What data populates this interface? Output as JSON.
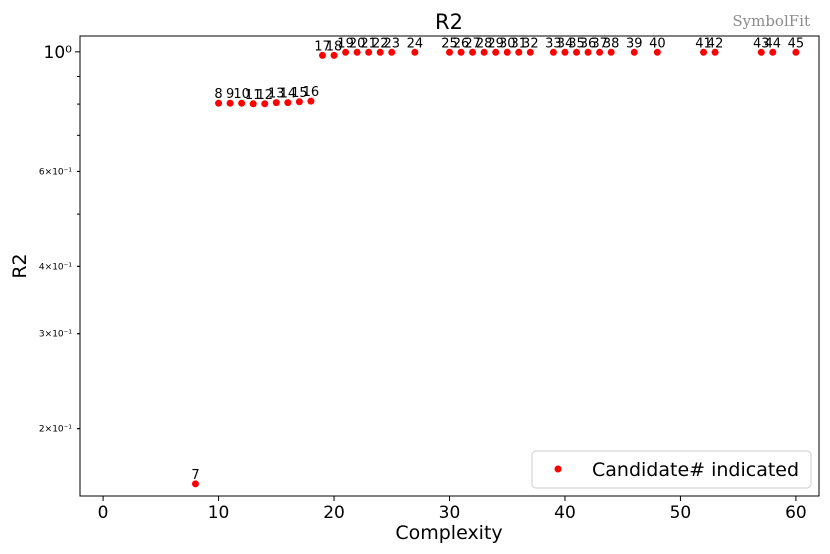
{
  "watermark": "SymbolFit",
  "chart_data": {
    "type": "scatter",
    "title": "R2",
    "xlabel": "Complexity",
    "ylabel": "R2",
    "xscale": "linear",
    "yscale": "log",
    "xlim": [
      -2,
      62
    ],
    "ylim": [
      0.15,
      1.07
    ],
    "xticks": [
      0,
      10,
      20,
      30,
      40,
      50,
      60
    ],
    "yticks": [
      {
        "value": 1.0,
        "label": "10⁰",
        "major": true
      },
      {
        "value": 0.6,
        "label": "6×10⁻¹",
        "major": false
      },
      {
        "value": 0.4,
        "label": "4×10⁻¹",
        "major": false
      },
      {
        "value": 0.3,
        "label": "3×10⁻¹",
        "major": false
      },
      {
        "value": 0.2,
        "label": "2×10⁻¹",
        "major": false
      }
    ],
    "legend": {
      "position": "lower-right",
      "label": "Candidate# indicated"
    },
    "marker_color": "#ff0000",
    "points": [
      {
        "label": "7",
        "x": 8,
        "y": 0.158
      },
      {
        "label": "8",
        "x": 10,
        "y": 0.803
      },
      {
        "label": "9",
        "x": 11,
        "y": 0.803
      },
      {
        "label": "10",
        "x": 12,
        "y": 0.803
      },
      {
        "label": "11",
        "x": 13,
        "y": 0.801
      },
      {
        "label": "12",
        "x": 14,
        "y": 0.801
      },
      {
        "label": "13",
        "x": 15,
        "y": 0.805
      },
      {
        "label": "14",
        "x": 16,
        "y": 0.805
      },
      {
        "label": "15",
        "x": 17,
        "y": 0.808
      },
      {
        "label": "16",
        "x": 18,
        "y": 0.81
      },
      {
        "label": "17",
        "x": 19,
        "y": 0.985
      },
      {
        "label": "18",
        "x": 20,
        "y": 0.985
      },
      {
        "label": "19",
        "x": 21,
        "y": 0.998
      },
      {
        "label": "20",
        "x": 22,
        "y": 0.998
      },
      {
        "label": "21",
        "x": 23,
        "y": 0.998
      },
      {
        "label": "22",
        "x": 24,
        "y": 0.998
      },
      {
        "label": "23",
        "x": 25,
        "y": 0.998
      },
      {
        "label": "24",
        "x": 27,
        "y": 0.998
      },
      {
        "label": "25",
        "x": 30,
        "y": 0.998
      },
      {
        "label": "26",
        "x": 31,
        "y": 0.998
      },
      {
        "label": "27",
        "x": 32,
        "y": 0.998
      },
      {
        "label": "28",
        "x": 33,
        "y": 0.998
      },
      {
        "label": "29",
        "x": 34,
        "y": 0.998
      },
      {
        "label": "30",
        "x": 35,
        "y": 0.998
      },
      {
        "label": "31",
        "x": 36,
        "y": 0.998
      },
      {
        "label": "32",
        "x": 37,
        "y": 0.998
      },
      {
        "label": "33",
        "x": 39,
        "y": 0.998
      },
      {
        "label": "34",
        "x": 40,
        "y": 0.998
      },
      {
        "label": "35",
        "x": 41,
        "y": 0.998
      },
      {
        "label": "36",
        "x": 42,
        "y": 0.998
      },
      {
        "label": "37",
        "x": 43,
        "y": 0.998
      },
      {
        "label": "38",
        "x": 44,
        "y": 0.998
      },
      {
        "label": "39",
        "x": 46,
        "y": 0.998
      },
      {
        "label": "40",
        "x": 48,
        "y": 0.998
      },
      {
        "label": "41",
        "x": 52,
        "y": 0.998
      },
      {
        "label": "42",
        "x": 53,
        "y": 0.998
      },
      {
        "label": "43",
        "x": 57,
        "y": 0.998
      },
      {
        "label": "44",
        "x": 58,
        "y": 0.998
      },
      {
        "label": "45",
        "x": 60,
        "y": 0.998
      }
    ]
  }
}
